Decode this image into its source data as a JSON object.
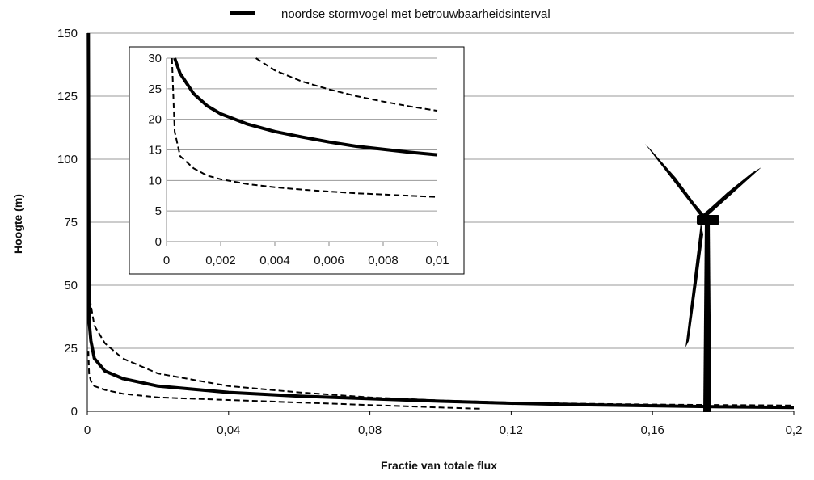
{
  "legend": {
    "label": "noordse stormvogel met betrouwbaarheidsinterval"
  },
  "chart_data": [
    {
      "type": "line",
      "title": "",
      "xlabel": "Fractie van totale flux",
      "ylabel": "Hoogte (m)",
      "xlim": [
        0,
        0.2
      ],
      "ylim": [
        0,
        150
      ],
      "xticks": [
        0,
        0.04,
        0.08,
        0.12,
        0.16,
        0.2
      ],
      "xtick_labels": [
        "0",
        "0,04",
        "0,08",
        "0,12",
        "0,16",
        "0,2"
      ],
      "yticks": [
        0,
        25,
        50,
        75,
        100,
        125,
        150
      ],
      "ytick_labels": [
        "0",
        "25",
        "50",
        "75",
        "100",
        "125",
        "150"
      ],
      "grid": "horizontal",
      "legend_position": "top",
      "series": [
        {
          "name": "noordse stormvogel met betrouwbaarheidsinterval",
          "style": "solid",
          "x": [
            0.0003,
            0.0005,
            0.001,
            0.002,
            0.005,
            0.01,
            0.02,
            0.04,
            0.06,
            0.08,
            0.1,
            0.12,
            0.14,
            0.16,
            0.18,
            0.2
          ],
          "y": [
            150,
            36,
            28,
            21,
            16,
            13,
            10,
            7.5,
            6,
            5,
            4,
            3.2,
            2.6,
            2.2,
            1.8,
            1.5
          ]
        },
        {
          "style": "dashed",
          "x": [
            0.0003,
            0.002,
            0.005,
            0.01,
            0.02,
            0.04,
            0.06,
            0.08,
            0.1,
            0.12,
            0.14,
            0.16,
            0.18,
            0.2
          ],
          "y": [
            48,
            34,
            27,
            21,
            15,
            10,
            7.5,
            5.5,
            4.3,
            3.5,
            3,
            2.7,
            2.5,
            2.3
          ]
        },
        {
          "style": "dashed",
          "x": [
            0.0003,
            0.0005,
            0.001,
            0.002,
            0.005,
            0.01,
            0.02,
            0.04,
            0.06,
            0.08,
            0.1,
            0.112
          ],
          "y": [
            24,
            15,
            12,
            10,
            8.5,
            7,
            5.5,
            4.5,
            3.5,
            2.5,
            1.5,
            1
          ]
        }
      ]
    },
    {
      "type": "line",
      "title": "",
      "xlim": [
        0,
        0.01
      ],
      "ylim": [
        0,
        30
      ],
      "xticks": [
        0,
        0.002,
        0.004,
        0.006,
        0.008,
        0.01
      ],
      "xtick_labels": [
        "0",
        "0,002",
        "0,004",
        "0,006",
        "0,008",
        "0,01"
      ],
      "yticks": [
        0,
        5,
        10,
        15,
        20,
        25,
        30
      ],
      "ytick_labels": [
        "0",
        "5",
        "10",
        "15",
        "20",
        "25",
        "30"
      ],
      "grid": "horizontal",
      "series": [
        {
          "style": "solid",
          "x": [
            0.0003,
            0.0005,
            0.001,
            0.0015,
            0.002,
            0.003,
            0.004,
            0.005,
            0.006,
            0.007,
            0.008,
            0.009,
            0.01
          ],
          "y": [
            30,
            27.5,
            24.2,
            22.2,
            20.9,
            19.2,
            18,
            17.1,
            16.3,
            15.6,
            15.1,
            14.6,
            14.2
          ]
        },
        {
          "style": "dashed",
          "x": [
            0.0033,
            0.004,
            0.005,
            0.006,
            0.007,
            0.008,
            0.009,
            0.01
          ],
          "y": [
            30,
            28,
            26.2,
            24.9,
            23.8,
            22.9,
            22.1,
            21.4
          ]
        },
        {
          "style": "dashed",
          "x": [
            0.0002,
            0.0003,
            0.0005,
            0.001,
            0.0015,
            0.002,
            0.003,
            0.004,
            0.005,
            0.006,
            0.007,
            0.008,
            0.009,
            0.01
          ],
          "y": [
            30,
            18,
            14,
            12,
            10.8,
            10.2,
            9.4,
            8.9,
            8.5,
            8.2,
            7.9,
            7.7,
            7.5,
            7.3
          ]
        }
      ]
    }
  ],
  "turbine": {
    "label": "wind-turbine"
  }
}
